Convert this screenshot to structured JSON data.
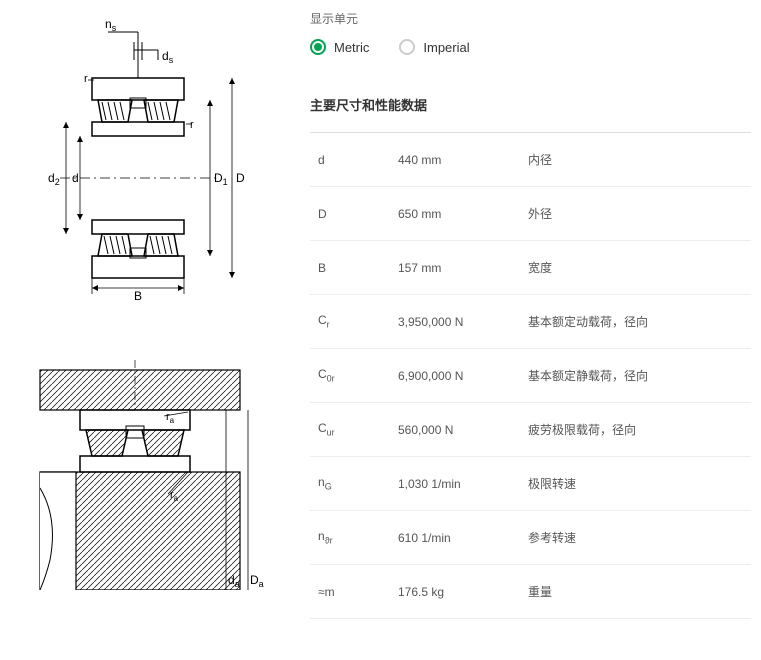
{
  "unit_section_label": "显示单元",
  "radios": {
    "metric": "Metric",
    "imperial": "Imperial"
  },
  "section_title": "主要尺寸和性能数据",
  "specs": [
    {
      "sym": "d",
      "sub": "",
      "val": "440 mm",
      "desc": "内径"
    },
    {
      "sym": "D",
      "sub": "",
      "val": "650 mm",
      "desc": "外径"
    },
    {
      "sym": "B",
      "sub": "",
      "val": "157 mm",
      "desc": "宽度"
    },
    {
      "sym": "C",
      "sub": "r",
      "val": "3,950,000 N",
      "desc": "基本额定动载荷，径向"
    },
    {
      "sym": "C",
      "sub": "0r",
      "val": "6,900,000 N",
      "desc": "基本额定静载荷，径向"
    },
    {
      "sym": "C",
      "sub": "ur",
      "val": "560,000 N",
      "desc": "疲劳极限载荷，径向"
    },
    {
      "sym": "n",
      "sub": "G",
      "val": "1,030 1/min",
      "desc": "极限转速"
    },
    {
      "sym": "n",
      "sub": "ϑr",
      "val": "610 1/min",
      "desc": "参考转速"
    },
    {
      "sym": "≈m",
      "sub": "",
      "val": "176.5 kg",
      "desc": "重量"
    }
  ],
  "diagram1_labels": {
    "ns": "n",
    "ns_sub": "s",
    "ds": "d",
    "ds_sub": "s",
    "r1": "r",
    "r2": "r",
    "d2": "d",
    "d2_sub": "2",
    "d": "d",
    "D1": "D",
    "D1_sub": "1",
    "D": "D",
    "B": "B"
  },
  "diagram2_labels": {
    "ra1": "r",
    "ra1_sub": "a",
    "ra2": "r",
    "ra2_sub": "a",
    "da": "d",
    "da_sub": "a",
    "Da": "D",
    "Da_sub": "a"
  },
  "colors": {
    "accent": "#00a550",
    "border": "#ddd",
    "text": "#333",
    "muted": "#666"
  }
}
